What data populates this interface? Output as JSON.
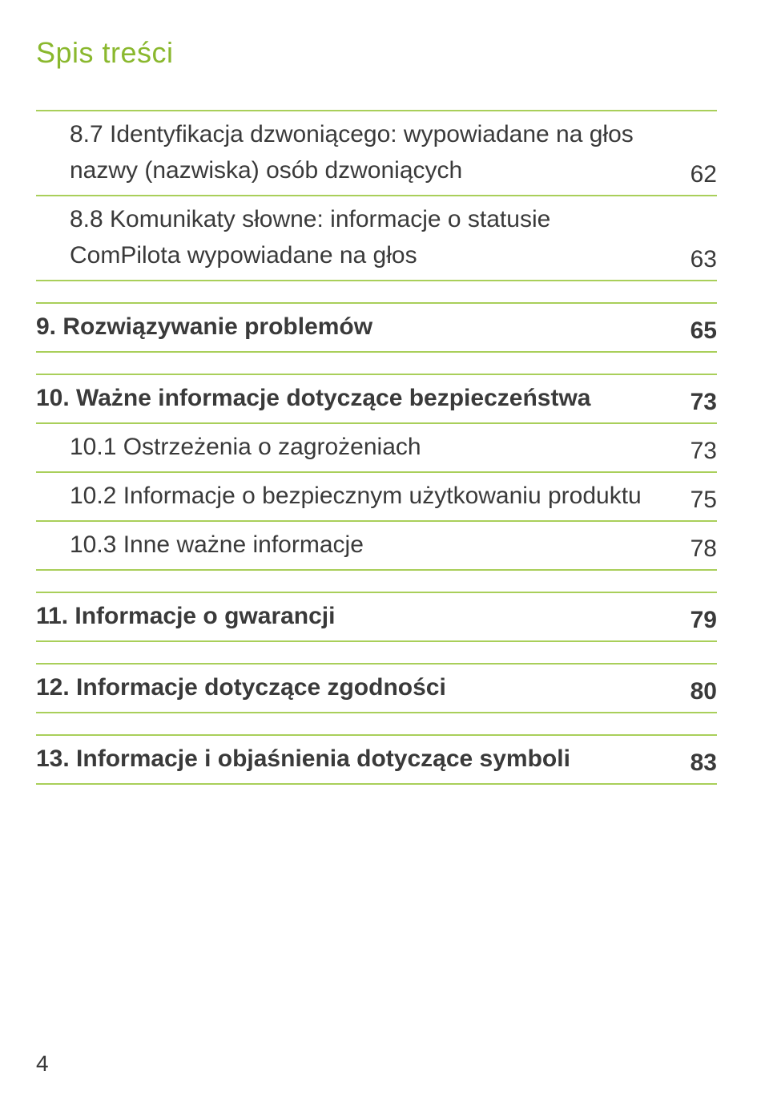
{
  "header": "Spis treści",
  "sections": [
    {
      "entries": [
        {
          "label": "8.7 Identyfikacja dzwoniącego: wypowiadane na głos nazwy (nazwiska) osób dzwoniących",
          "page": "62",
          "bold": false,
          "indent": true,
          "topRule": true
        },
        {
          "label": "8.8 Komunikaty słowne: informacje o statusie ComPilota wypowiadane na głos",
          "page": "63",
          "bold": false,
          "indent": true,
          "topRule": false
        }
      ]
    },
    {
      "entries": [
        {
          "label": "9. Rozwiązywanie problemów",
          "page": "65",
          "bold": true,
          "indent": false,
          "topRule": true
        }
      ]
    },
    {
      "entries": [
        {
          "label": "10. Ważne informacje dotyczące bezpieczeństwa",
          "page": "73",
          "bold": true,
          "indent": false,
          "topRule": true
        },
        {
          "label": "10.1 Ostrzeżenia o zagrożeniach",
          "page": "73",
          "bold": false,
          "indent": true,
          "topRule": false
        },
        {
          "label": "10.2 Informacje o bezpiecznym użytkowaniu produktu",
          "page": "75",
          "bold": false,
          "indent": true,
          "topRule": false
        },
        {
          "label": "10.3 Inne ważne informacje",
          "page": "78",
          "bold": false,
          "indent": true,
          "topRule": false
        }
      ]
    },
    {
      "entries": [
        {
          "label": "11. Informacje o gwarancji",
          "page": "79",
          "bold": true,
          "indent": false,
          "topRule": true
        }
      ]
    },
    {
      "entries": [
        {
          "label": "12. Informacje dotyczące zgodności",
          "page": "80",
          "bold": true,
          "indent": false,
          "topRule": true
        }
      ]
    },
    {
      "entries": [
        {
          "label": "13. Informacje i objaśnienia dotyczące symboli",
          "page": "83",
          "bold": true,
          "indent": false,
          "topRule": true
        }
      ]
    }
  ],
  "pageNumber": "4",
  "colors": {
    "accent": "#8ab82e",
    "rule": "#a9cf5a",
    "text": "#3a3a3a",
    "background": "#ffffff"
  },
  "typography": {
    "headerSize": 36,
    "bodySize": 30,
    "pageNumSize": 28
  }
}
